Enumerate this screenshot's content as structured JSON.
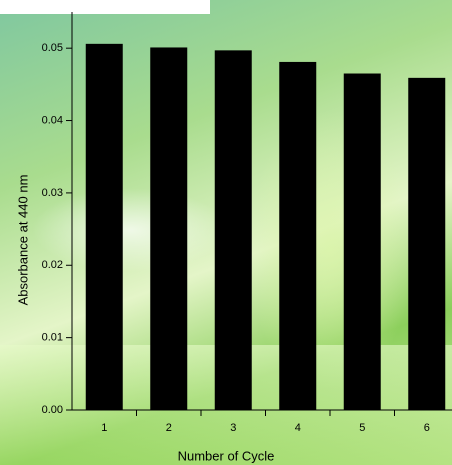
{
  "chart_data": {
    "type": "bar",
    "x_label": "Number of Cycle",
    "y_label": "Absorbance at 440 nm",
    "categories": [
      "1",
      "2",
      "3",
      "4",
      "5",
      "6"
    ],
    "values": [
      0.0506,
      0.0501,
      0.0497,
      0.0481,
      0.0465,
      0.0459
    ],
    "color": "#000000",
    "ylim": [
      0,
      0.055
    ],
    "yticks": [
      {
        "value": 0,
        "label": "0.00"
      },
      {
        "value": 0.01,
        "label": "0.01"
      },
      {
        "value": 0.02,
        "label": "0.02"
      },
      {
        "value": 0.03,
        "label": "0.03"
      },
      {
        "value": 0.04,
        "label": "0.04"
      },
      {
        "value": 0.05,
        "label": "0.05"
      }
    ]
  }
}
